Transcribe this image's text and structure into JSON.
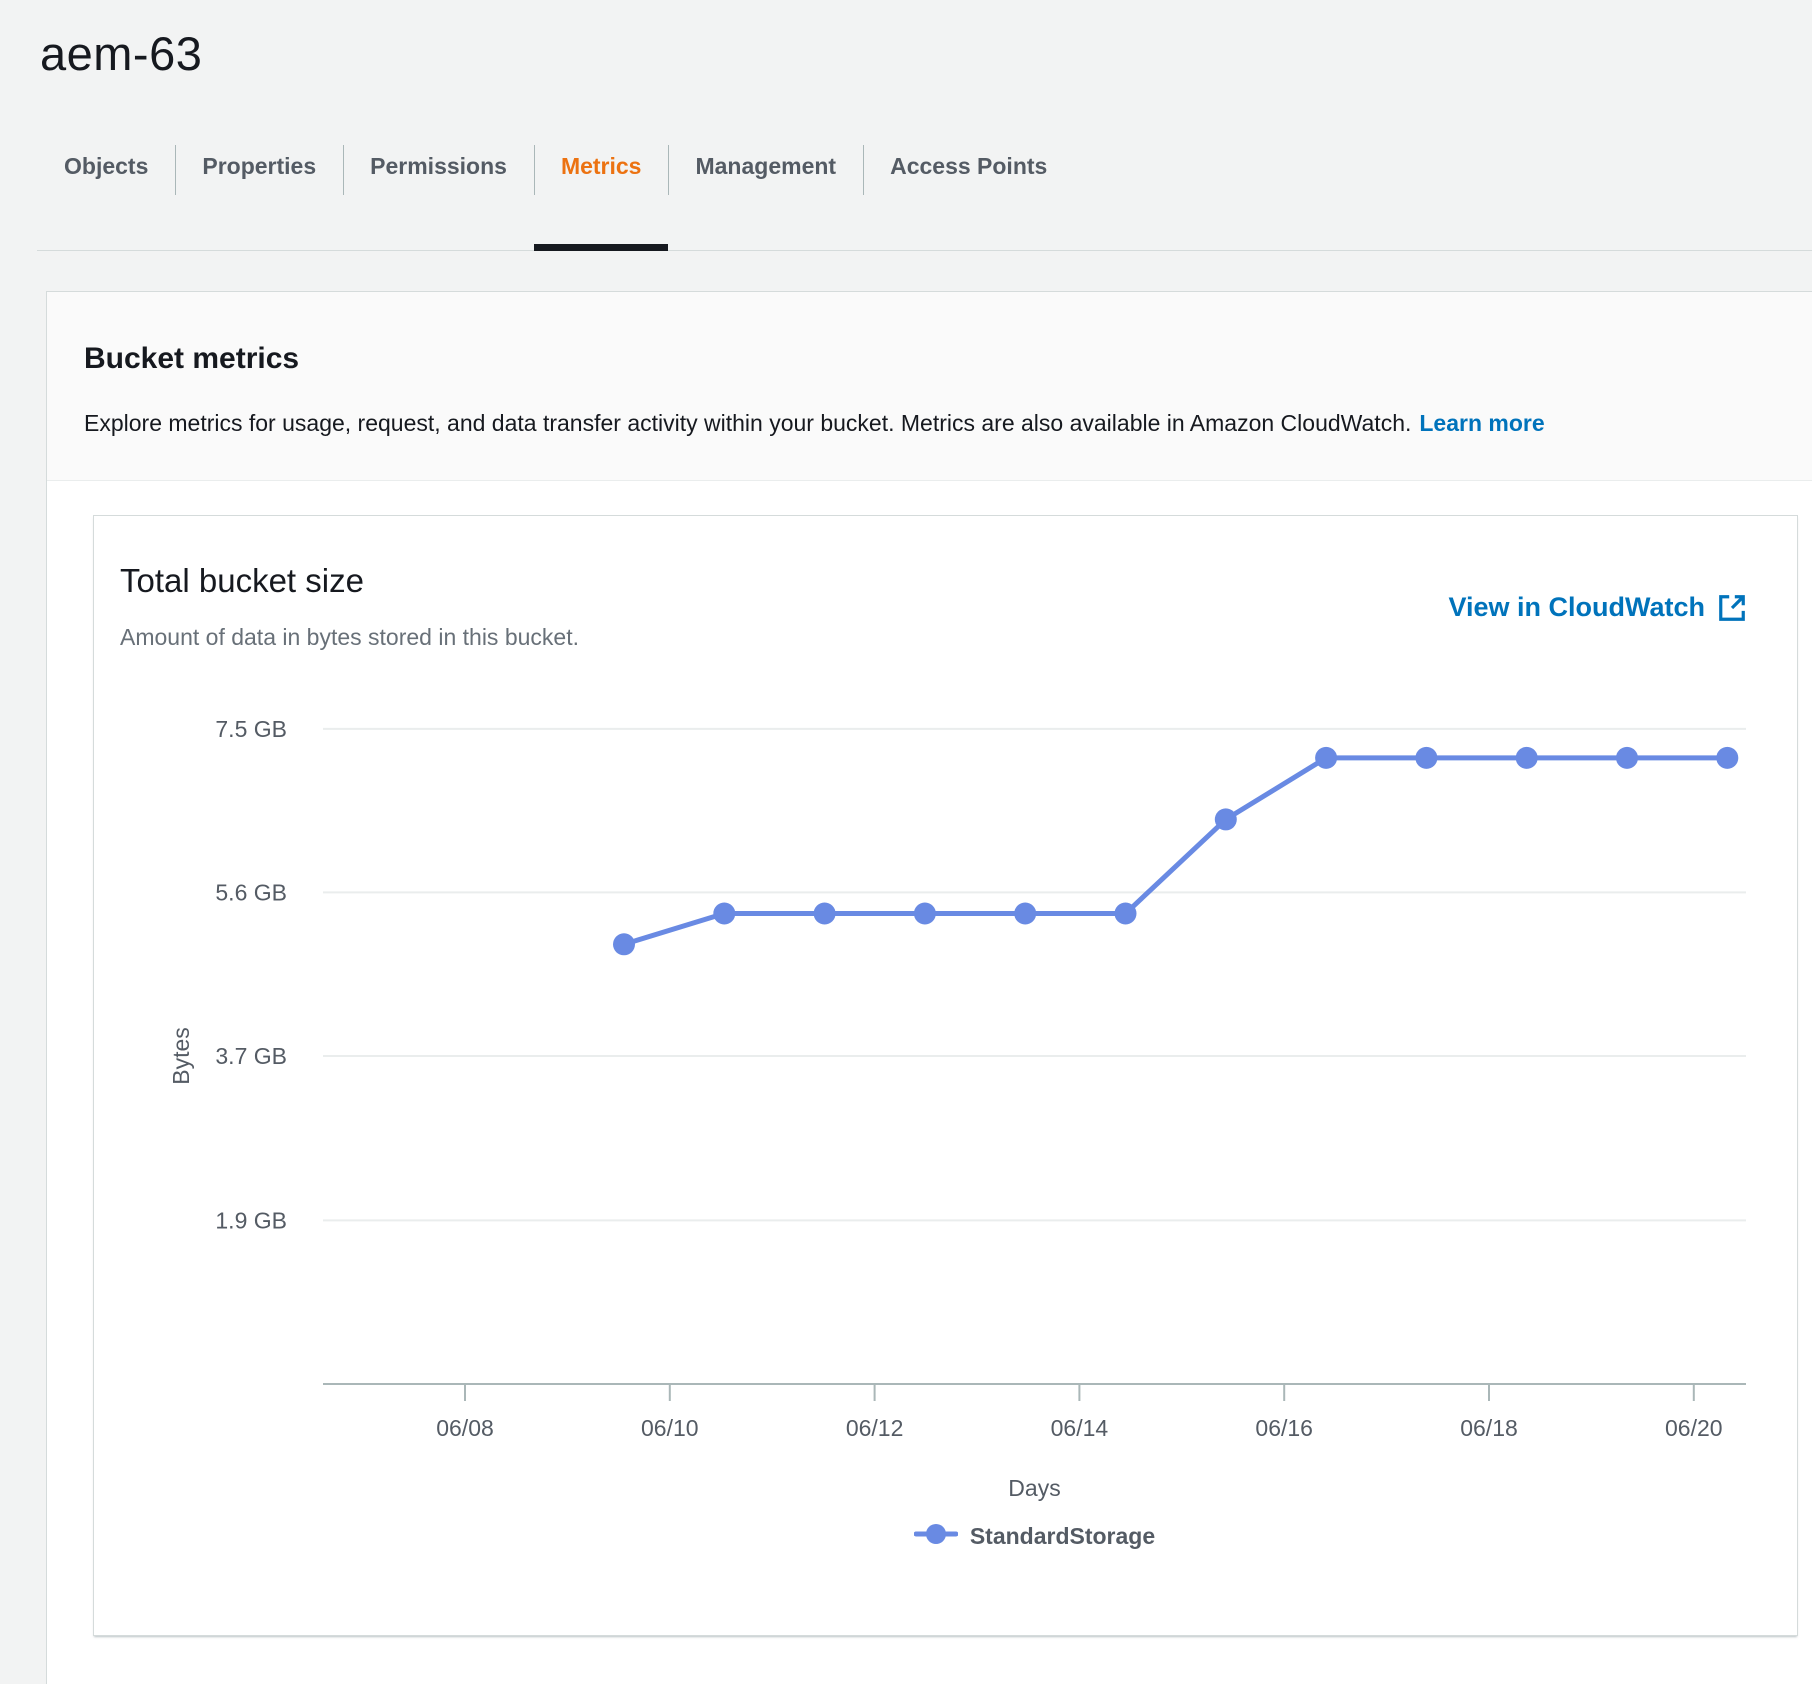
{
  "header": {
    "title": "aem-63"
  },
  "tabs": {
    "items": [
      {
        "label": "Objects",
        "active": false
      },
      {
        "label": "Properties",
        "active": false
      },
      {
        "label": "Permissions",
        "active": false
      },
      {
        "label": "Metrics",
        "active": true
      },
      {
        "label": "Management",
        "active": false
      },
      {
        "label": "Access Points",
        "active": false
      }
    ],
    "active_color": "#ec7211"
  },
  "metrics_panel": {
    "heading": "Bucket metrics",
    "description": "Explore metrics for usage, request, and data transfer activity within your bucket. Metrics are also available in Amazon CloudWatch.",
    "learn_more_label": "Learn more"
  },
  "chart_data": {
    "type": "line",
    "title": "Total bucket size",
    "subtitle": "Amount of data in bytes stored in this bucket.",
    "cloudwatch_link_label": "View in CloudWatch",
    "external_link_icon": "external-link-icon",
    "xlabel": "Days",
    "ylabel": "Bytes",
    "x_tick_labels": [
      "06/08",
      "06/10",
      "06/12",
      "06/14",
      "06/16",
      "06/18",
      "06/20"
    ],
    "y_ticks": [
      {
        "label": "7.5 GB",
        "gib": 7.45
      },
      {
        "label": "5.6 GB",
        "gib": 5.59
      },
      {
        "label": "3.7 GB",
        "gib": 3.73
      },
      {
        "label": "1.9 GB",
        "gib": 1.86
      }
    ],
    "ylim_gib": [
      0,
      7.95
    ],
    "grid": true,
    "legend_position": "bottom",
    "series": [
      {
        "name": "StandardStorage",
        "color": "#698ae3",
        "points": [
          {
            "date": "06/09",
            "gib": 5.0
          },
          {
            "date": "06/10",
            "gib": 5.35
          },
          {
            "date": "06/11",
            "gib": 5.35
          },
          {
            "date": "06/12",
            "gib": 5.35
          },
          {
            "date": "06/13",
            "gib": 5.35
          },
          {
            "date": "06/14",
            "gib": 5.35
          },
          {
            "date": "06/15",
            "gib": 6.42
          },
          {
            "date": "06/16",
            "gib": 7.12
          },
          {
            "date": "06/17",
            "gib": 7.12
          },
          {
            "date": "06/18",
            "gib": 7.12
          },
          {
            "date": "06/19",
            "gib": 7.12
          },
          {
            "date": "06/20",
            "gib": 7.12
          }
        ]
      }
    ],
    "colors": {
      "grid": "#eaeded",
      "axis": "#aab7b8",
      "tick_text": "#545b64"
    }
  }
}
